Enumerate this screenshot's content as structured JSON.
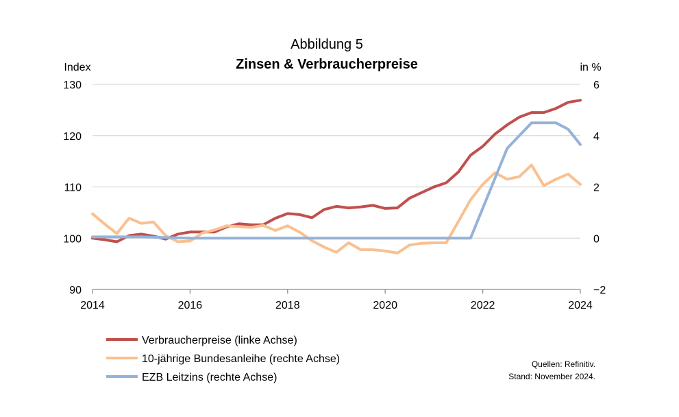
{
  "chart_data": {
    "type": "line",
    "title": "Abbildung 5",
    "subtitle": "Zinsen & Verbraucherpreise",
    "y_left_label": "Index",
    "y_right_label": "in %",
    "x_ticks": [
      "2014",
      "2016",
      "2018",
      "2020",
      "2022",
      "2024"
    ],
    "y_left_ticks": [
      "130",
      "120",
      "110",
      "100",
      "90"
    ],
    "y_right_ticks": [
      "6",
      "4",
      "2",
      "0",
      "−2"
    ],
    "xlim": [
      2014.0,
      2024.0
    ],
    "ylim_left": [
      90,
      130
    ],
    "ylim_right": [
      -2,
      6
    ],
    "grid": true,
    "legend_position": "bottom-left",
    "series": [
      {
        "name": "Verbraucherpreise (linke Achse)",
        "axis": "left",
        "color": "#c0504d",
        "x": [
          2014.0,
          2014.25,
          2014.5,
          2014.75,
          2015.0,
          2015.25,
          2015.5,
          2015.75,
          2016.0,
          2016.25,
          2016.5,
          2016.75,
          2017.0,
          2017.25,
          2017.5,
          2017.75,
          2018.0,
          2018.25,
          2018.5,
          2018.75,
          2019.0,
          2019.25,
          2019.5,
          2019.75,
          2020.0,
          2020.25,
          2020.5,
          2020.75,
          2021.0,
          2021.25,
          2021.5,
          2021.75,
          2022.0,
          2022.25,
          2022.5,
          2022.75,
          2023.0,
          2023.25,
          2023.5,
          2023.75,
          2024.0
        ],
        "values": [
          100.0,
          99.7,
          99.3,
          100.5,
          100.8,
          100.4,
          99.8,
          100.8,
          101.2,
          101.2,
          101.2,
          102.2,
          102.8,
          102.6,
          102.6,
          103.9,
          104.8,
          104.6,
          104.0,
          105.6,
          106.2,
          105.9,
          106.1,
          106.4,
          105.8,
          105.9,
          107.8,
          108.9,
          110.0,
          110.8,
          112.9,
          116.2,
          117.9,
          120.3,
          122.1,
          123.6,
          124.5,
          124.5,
          125.3,
          126.5,
          126.9
        ]
      },
      {
        "name": "10-jährige Bundesanleihe (rechte Achse)",
        "axis": "right",
        "color": "#fac090",
        "x": [
          2014.0,
          2014.25,
          2014.5,
          2014.75,
          2015.0,
          2015.25,
          2015.5,
          2015.75,
          2016.0,
          2016.25,
          2016.5,
          2016.75,
          2017.0,
          2017.25,
          2017.5,
          2017.75,
          2018.0,
          2018.25,
          2018.5,
          2018.75,
          2019.0,
          2019.25,
          2019.5,
          2019.75,
          2020.0,
          2020.25,
          2020.5,
          2020.75,
          2021.0,
          2021.25,
          2021.5,
          2021.75,
          2022.0,
          2022.25,
          2022.5,
          2022.75,
          2023.0,
          2023.25,
          2023.5,
          2023.75,
          2024.0
        ],
        "values": [
          0.95,
          0.55,
          0.18,
          0.78,
          0.58,
          0.63,
          0.1,
          -0.14,
          -0.11,
          0.2,
          0.32,
          0.48,
          0.45,
          0.42,
          0.5,
          0.3,
          0.48,
          0.23,
          -0.1,
          -0.35,
          -0.55,
          -0.18,
          -0.45,
          -0.45,
          -0.5,
          -0.58,
          -0.27,
          -0.2,
          -0.18,
          -0.18,
          0.65,
          1.5,
          2.1,
          2.55,
          2.3,
          2.4,
          2.85,
          2.05,
          2.3,
          2.5,
          2.1
        ]
      },
      {
        "name": "EZB Leitzins (rechte Achse)",
        "axis": "right",
        "color": "#95b3d7",
        "x": [
          2014.0,
          2015.0,
          2016.0,
          2017.0,
          2018.0,
          2019.0,
          2020.0,
          2021.0,
          2021.75,
          2022.5,
          2023.0,
          2023.5,
          2023.75,
          2024.0
        ],
        "values": [
          0.05,
          0.05,
          0.0,
          0.0,
          0.0,
          0.0,
          0.0,
          0.0,
          0.0,
          3.5,
          4.5,
          4.5,
          4.25,
          3.65
        ]
      }
    ]
  },
  "source": {
    "line1": "Quellen: Refinitiv.",
    "line2": "Stand: November 2024."
  }
}
